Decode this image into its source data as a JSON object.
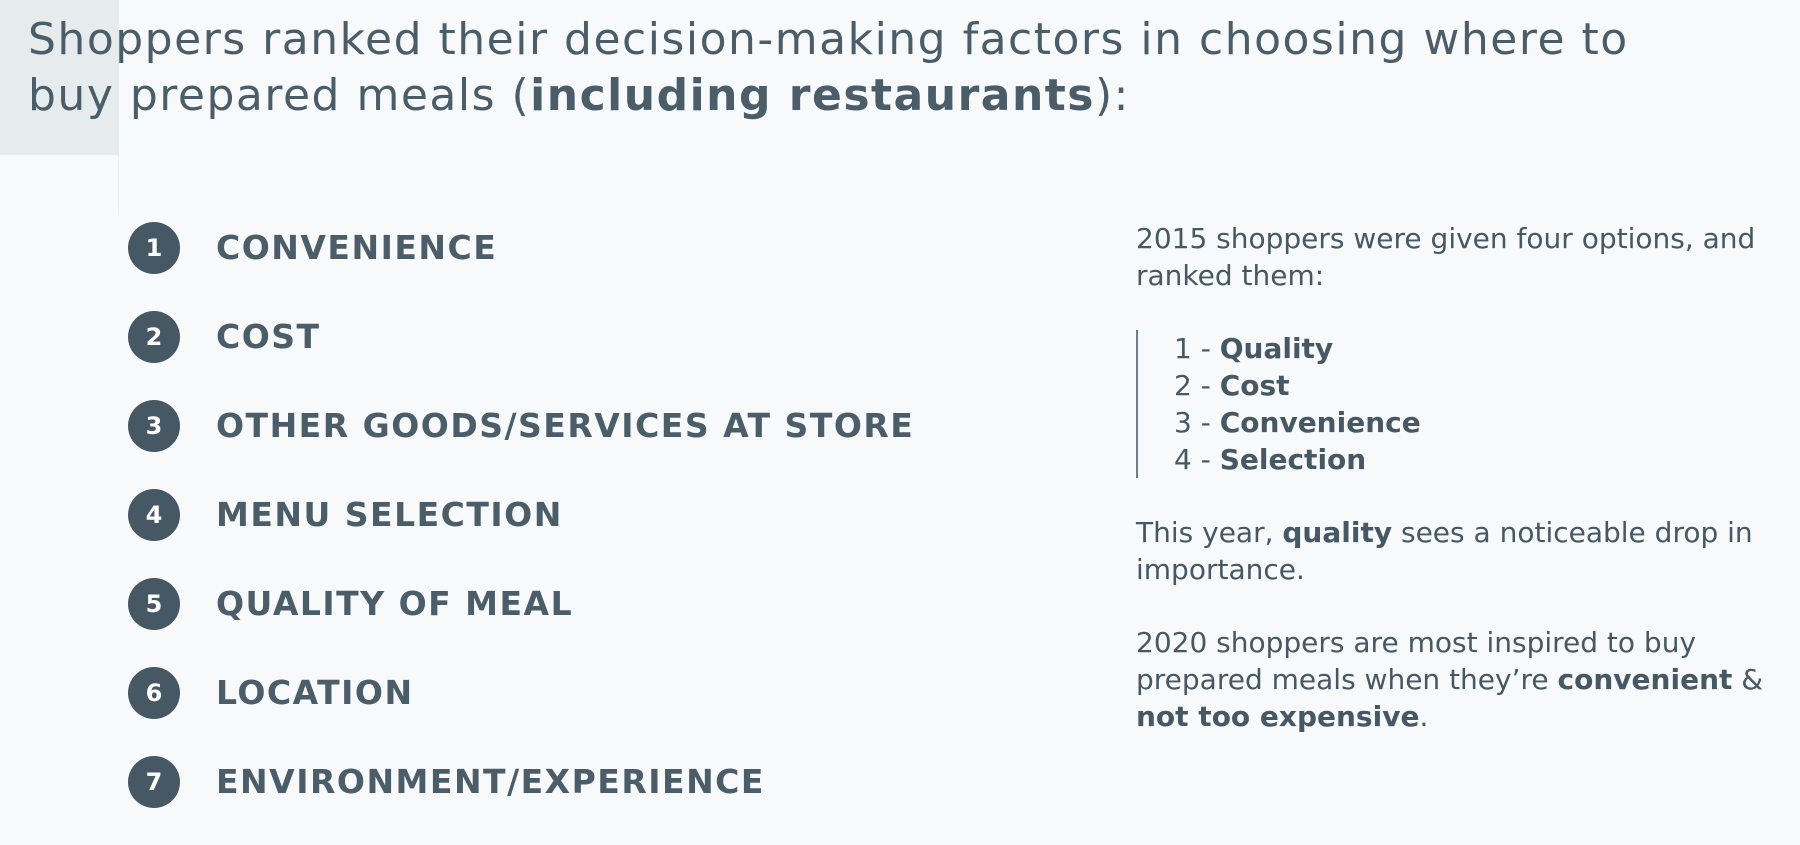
{
  "title": {
    "part1": "Shoppers ranked their decision-making factors in choosing where to buy prepared meals (",
    "bold": "including restaurants",
    "part2": "):"
  },
  "ranking": [
    {
      "number": "1",
      "label": "CONVENIENCE"
    },
    {
      "number": "2",
      "label": "COST"
    },
    {
      "number": "3",
      "label": "OTHER GOODS/SERVICES AT STORE"
    },
    {
      "number": "4",
      "label": "MENU SELECTION"
    },
    {
      "number": "5",
      "label": "QUALITY OF MEAL"
    },
    {
      "number": "6",
      "label": "LOCATION"
    },
    {
      "number": "7",
      "label": "ENVIRONMENT/EXPERIENCE"
    }
  ],
  "sidebar": {
    "intro": "2015 shoppers were given four options, and ranked them:",
    "ranks_2015": [
      {
        "prefix": "1 - ",
        "label": "Quality"
      },
      {
        "prefix": "2 - ",
        "label": "Cost"
      },
      {
        "prefix": "3 - ",
        "label": "Convenience"
      },
      {
        "prefix": "4 - ",
        "label": "Selection"
      }
    ],
    "para2": {
      "text1": "This year, ",
      "bold": "quality",
      "text2": " sees a noticeable drop in importance."
    },
    "para3": {
      "text1": "2020 shoppers are most inspired to buy prepared meals when they’re ",
      "bold1": "convenient",
      "text2": " & ",
      "bold2": "not too expensive",
      "text3": "."
    }
  },
  "colors": {
    "background": "#f7f9fb",
    "text": "#4b5d69",
    "badge": "#465864",
    "accent_block": "#e6eced"
  }
}
